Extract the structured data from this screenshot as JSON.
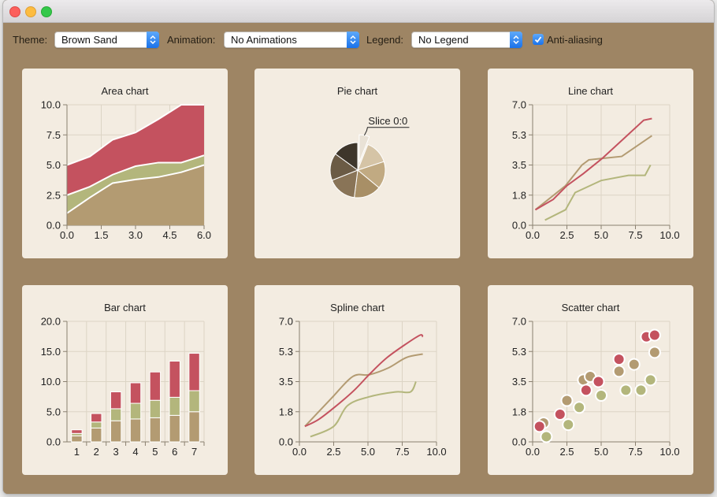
{
  "window": {
    "traffic_lights": [
      "close",
      "minimize",
      "maximize"
    ]
  },
  "toolbar": {
    "theme_label": "Theme:",
    "theme_value": "Brown Sand",
    "animation_label": "Animation:",
    "animation_value": "No Animations",
    "legend_label": "Legend:",
    "legend_value": "No Legend",
    "antialias_label": "Anti-aliasing",
    "antialias_checked": true
  },
  "colors": {
    "background": "#9e8564",
    "panel": "#f3ece1",
    "red": "#c4525f",
    "green": "#b3b67c",
    "tan": "#b39b72",
    "brown": "#7c6a52",
    "dark": "#3d352b",
    "grid": "#dcd4c5"
  },
  "chart_data": [
    {
      "type": "area",
      "title": "Area chart",
      "x": [
        0,
        1,
        2,
        3,
        4,
        5,
        6
      ],
      "xlim": [
        0,
        6
      ],
      "ylim": [
        0,
        10
      ],
      "xticks": [
        "0.0",
        "1.5",
        "3.0",
        "4.5",
        "6.0"
      ],
      "yticks": [
        "0.0",
        "2.5",
        "5.0",
        "7.5",
        "10.0"
      ],
      "series": [
        {
          "values": [
            1.0,
            2.3,
            3.5,
            3.8,
            4.0,
            4.4,
            5.0
          ]
        },
        {
          "values": [
            2.5,
            3.2,
            4.2,
            4.9,
            5.2,
            5.2,
            5.8
          ]
        },
        {
          "values": [
            5.0,
            5.7,
            7.1,
            7.7,
            8.8,
            10.0,
            10.0
          ]
        }
      ]
    },
    {
      "type": "pie",
      "title": "Pie chart",
      "slice_label": "Slice 0:0",
      "values": [
        6,
        14,
        16,
        16,
        17,
        16,
        15
      ],
      "exploded_slice": 0
    },
    {
      "type": "line",
      "title": "Line chart",
      "xlim": [
        0,
        10
      ],
      "ylim": [
        0,
        7
      ],
      "xticks": [
        "0.0",
        "2.5",
        "5.0",
        "7.5",
        "10.0"
      ],
      "yticks": [
        "0.0",
        "1.8",
        "3.5",
        "5.3",
        "7.0"
      ],
      "series": [
        {
          "points": [
            [
              0.2,
              0.9
            ],
            [
              1.5,
              1.5
            ],
            [
              2.5,
              2.3
            ],
            [
              3.7,
              3.0
            ],
            [
              5.1,
              3.9
            ],
            [
              6.6,
              5.0
            ],
            [
              8.1,
              6.1
            ],
            [
              8.7,
              6.2
            ]
          ]
        },
        {
          "points": [
            [
              0.2,
              0.9
            ],
            [
              2.4,
              2.3
            ],
            [
              3.6,
              3.5
            ],
            [
              4.1,
              3.8
            ],
            [
              6.5,
              4.0
            ],
            [
              8.7,
              5.2
            ]
          ]
        },
        {
          "points": [
            [
              0.9,
              0.3
            ],
            [
              2.4,
              0.9
            ],
            [
              3.1,
              1.9
            ],
            [
              5.0,
              2.6
            ],
            [
              7.0,
              2.9
            ],
            [
              8.2,
              2.9
            ],
            [
              8.6,
              3.5
            ]
          ]
        }
      ]
    },
    {
      "type": "bar",
      "title": "Bar chart",
      "stacked": true,
      "categories": [
        "1",
        "2",
        "3",
        "4",
        "5",
        "6",
        "7"
      ],
      "ylim": [
        0,
        20
      ],
      "yticks": [
        "0.0",
        "5.0",
        "10.0",
        "15.0",
        "20.0"
      ],
      "series": [
        {
          "values": [
            1.0,
            2.3,
            3.5,
            3.8,
            4.0,
            4.4,
            5.0
          ]
        },
        {
          "values": [
            0.4,
            1.0,
            2.0,
            2.6,
            2.9,
            3.0,
            3.5
          ]
        },
        {
          "values": [
            0.6,
            1.4,
            2.8,
            3.4,
            4.7,
            6.0,
            6.2
          ]
        }
      ]
    },
    {
      "type": "line",
      "title": "Spline chart",
      "smooth": true,
      "xlim": [
        0,
        10
      ],
      "ylim": [
        0,
        7
      ],
      "xticks": [
        "0.0",
        "2.5",
        "5.0",
        "7.5",
        "10.0"
      ],
      "yticks": [
        "0.0",
        "1.8",
        "3.5",
        "5.3",
        "7.0"
      ],
      "series": [
        {
          "points": [
            [
              0.4,
              0.9
            ],
            [
              1.4,
              1.3
            ],
            [
              2.7,
              2.1
            ],
            [
              4.0,
              3.0
            ],
            [
              5.2,
              4.0
            ],
            [
              6.4,
              4.9
            ],
            [
              7.8,
              5.7
            ],
            [
              8.8,
              6.2
            ],
            [
              9.0,
              6.1
            ]
          ]
        },
        {
          "points": [
            [
              0.4,
              0.9
            ],
            [
              2.3,
              2.5
            ],
            [
              3.9,
              3.8
            ],
            [
              5.1,
              3.9
            ],
            [
              6.5,
              4.3
            ],
            [
              7.8,
              4.9
            ],
            [
              9.0,
              5.1
            ]
          ]
        },
        {
          "points": [
            [
              0.8,
              0.3
            ],
            [
              2.5,
              0.9
            ],
            [
              3.5,
              2.1
            ],
            [
              5.0,
              2.6
            ],
            [
              7.0,
              2.9
            ],
            [
              8.1,
              2.9
            ],
            [
              8.5,
              3.5
            ]
          ]
        }
      ]
    },
    {
      "type": "scatter",
      "title": "Scatter chart",
      "xlim": [
        0,
        10
      ],
      "ylim": [
        0,
        7
      ],
      "xticks": [
        "0.0",
        "2.5",
        "5.0",
        "7.5",
        "10.0"
      ],
      "yticks": [
        "0.0",
        "1.8",
        "3.5",
        "5.3",
        "7.0"
      ],
      "series": [
        {
          "points": [
            [
              0.5,
              0.9
            ],
            [
              2.0,
              1.6
            ],
            [
              3.9,
              3.0
            ],
            [
              4.8,
              3.5
            ],
            [
              6.3,
              4.8
            ],
            [
              8.3,
              6.1
            ],
            [
              8.9,
              6.2
            ]
          ]
        },
        {
          "points": [
            [
              0.8,
              1.1
            ],
            [
              2.5,
              2.4
            ],
            [
              3.7,
              3.6
            ],
            [
              4.2,
              3.8
            ],
            [
              6.3,
              4.1
            ],
            [
              7.4,
              4.5
            ],
            [
              8.9,
              5.2
            ]
          ]
        },
        {
          "points": [
            [
              1.0,
              0.3
            ],
            [
              2.6,
              1.0
            ],
            [
              3.4,
              2.0
            ],
            [
              5.0,
              2.7
            ],
            [
              6.8,
              3.0
            ],
            [
              7.9,
              3.0
            ],
            [
              8.6,
              3.6
            ]
          ]
        }
      ]
    }
  ]
}
